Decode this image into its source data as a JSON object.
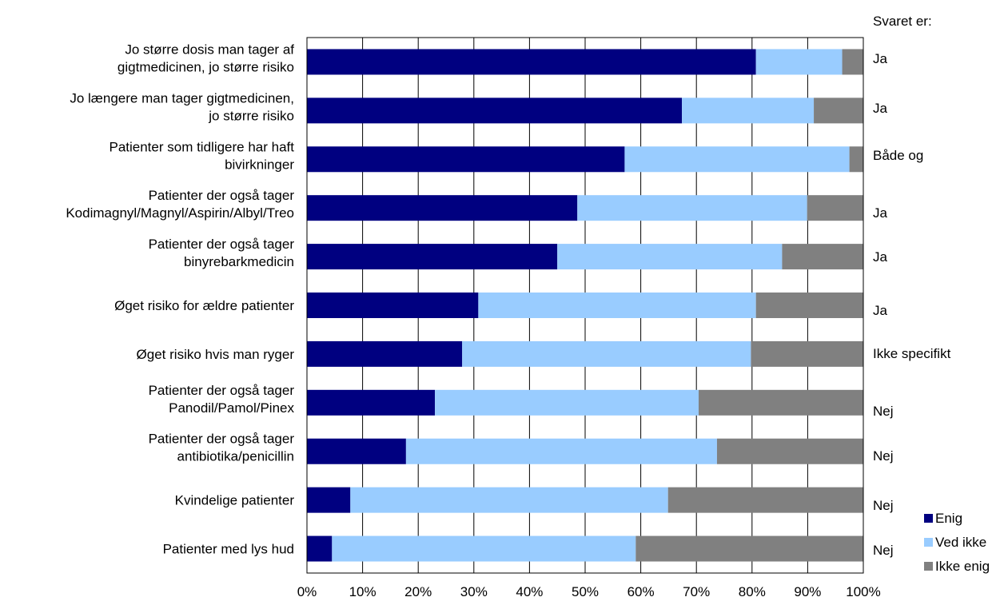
{
  "chart_data": {
    "type": "bar",
    "orientation": "horizontal",
    "stacked": "percent",
    "categories": [
      [
        "Jo større dosis man tager af",
        "gigtmedicinen, jo større risiko"
      ],
      [
        "Jo længere man tager gigtmedicinen,",
        "jo større risiko"
      ],
      [
        "Patienter som tidligere har haft",
        "bivirkninger"
      ],
      [
        "Patienter der også tager",
        "Kodimagnyl/Magnyl/Aspirin/Albyl/Treo"
      ],
      [
        "Patienter der også tager",
        "binyrebarkmedicin"
      ],
      [
        "Øget risiko for ældre patienter"
      ],
      [
        "Øget risiko hvis man ryger"
      ],
      [
        "Patienter der også tager",
        "Panodil/Pamol/Pinex"
      ],
      [
        "Patienter der også tager",
        "antibiotika/penicillin"
      ],
      [
        "Kvindelige patienter"
      ],
      [
        "Patienter med lys hud"
      ]
    ],
    "series": [
      {
        "name": "Enig",
        "color": "#000080",
        "values": [
          80.7,
          67.4,
          57.1,
          48.6,
          45.0,
          30.8,
          27.9,
          23.0,
          17.8,
          7.8,
          4.5
        ]
      },
      {
        "name": "Ved ikke",
        "color": "#99ccff",
        "values": [
          15.5,
          23.7,
          40.4,
          41.3,
          40.4,
          49.9,
          51.9,
          47.4,
          55.9,
          57.1,
          54.6
        ]
      },
      {
        "name": "Ikke enig",
        "color": "#808080",
        "values": [
          3.8,
          8.9,
          2.5,
          10.1,
          14.6,
          19.3,
          20.2,
          29.6,
          26.3,
          35.1,
          40.9
        ]
      }
    ],
    "answers_header": "Svaret er:",
    "answers": [
      "Ja",
      "Ja",
      "Både og",
      "Ja",
      "Ja",
      "Ja",
      "Ikke specifikt",
      "Nej",
      "Nej",
      "Nej",
      "Nej"
    ],
    "xlim": [
      0,
      100
    ],
    "xticks": [
      "0%",
      "10%",
      "20%",
      "30%",
      "40%",
      "50%",
      "60%",
      "70%",
      "80%",
      "90%",
      "100%"
    ],
    "grid": "vertical",
    "legend": "bottom-right"
  }
}
